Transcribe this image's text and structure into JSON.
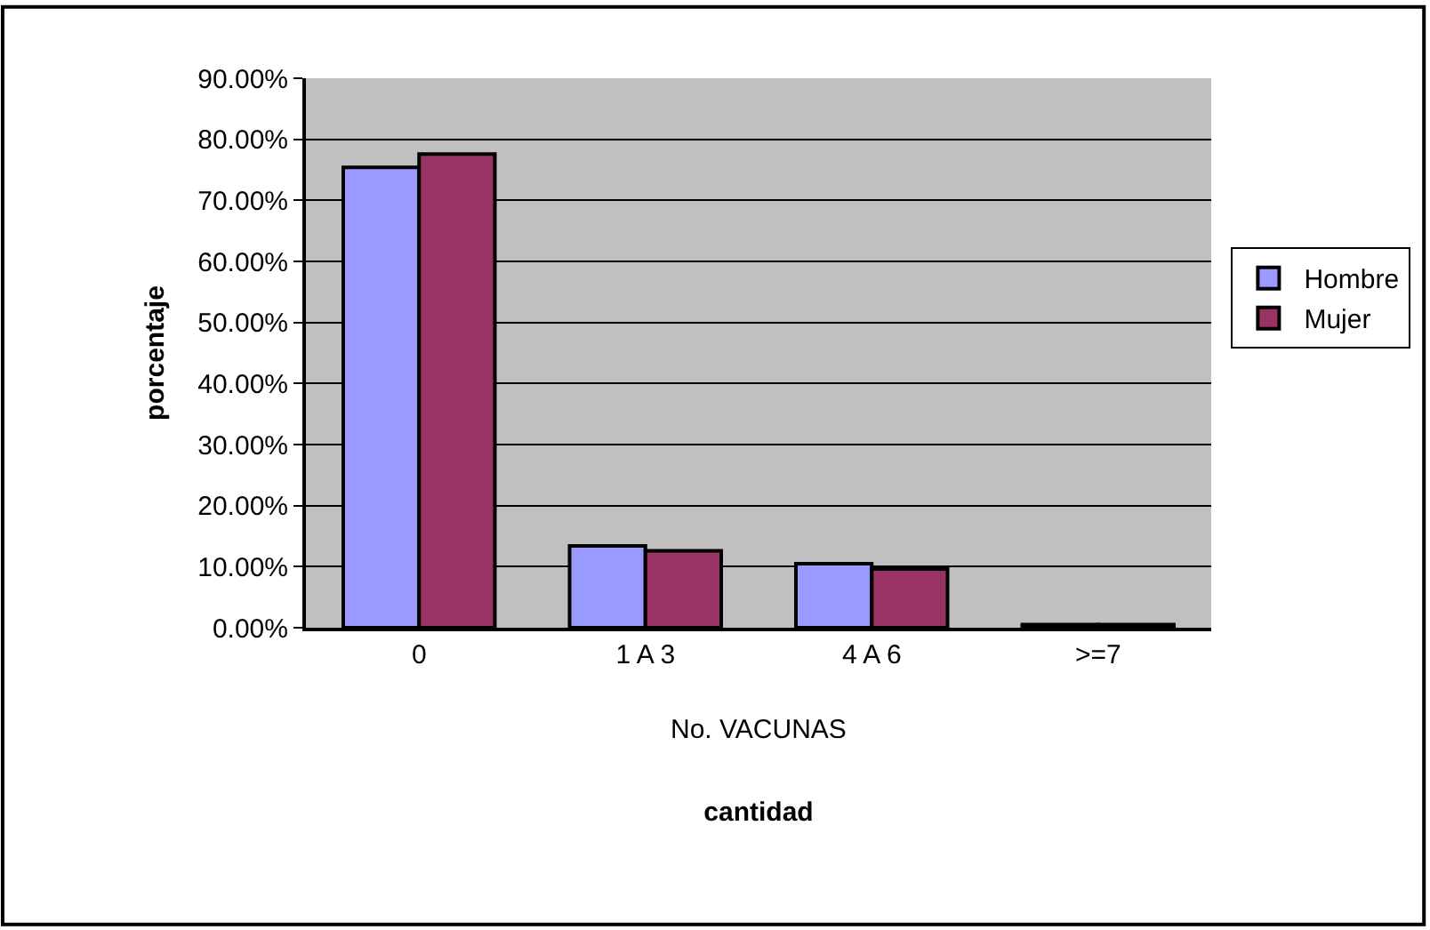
{
  "chart_data": {
    "type": "bar",
    "categories": [
      "0",
      "1 A 3",
      "4 A 6",
      ">=7"
    ],
    "series": [
      {
        "name": "Hombre",
        "color": "#9999ff",
        "values": [
          75.4,
          13.4,
          10.5,
          0.5
        ]
      },
      {
        "name": "Mujer",
        "color": "#993366",
        "values": [
          77.6,
          12.6,
          9.6,
          0.5
        ]
      }
    ],
    "xlabel": "cantidad",
    "ylabel": "porcentaje",
    "annotations": [
      "No. VACUNAS"
    ],
    "ylim": [
      0,
      90
    ],
    "yticks": [
      {
        "value": 0,
        "label": "0.00%"
      },
      {
        "value": 10,
        "label": "10.00%"
      },
      {
        "value": 20,
        "label": "20.00%"
      },
      {
        "value": 30,
        "label": "30.00%"
      },
      {
        "value": 40,
        "label": "40.00%"
      },
      {
        "value": 50,
        "label": "50.00%"
      },
      {
        "value": 60,
        "label": "60.00%"
      },
      {
        "value": 70,
        "label": "70.00%"
      },
      {
        "value": 80,
        "label": "80.00%"
      },
      {
        "value": 90,
        "label": "90.00%"
      }
    ],
    "grid": "y",
    "legend": "right"
  }
}
